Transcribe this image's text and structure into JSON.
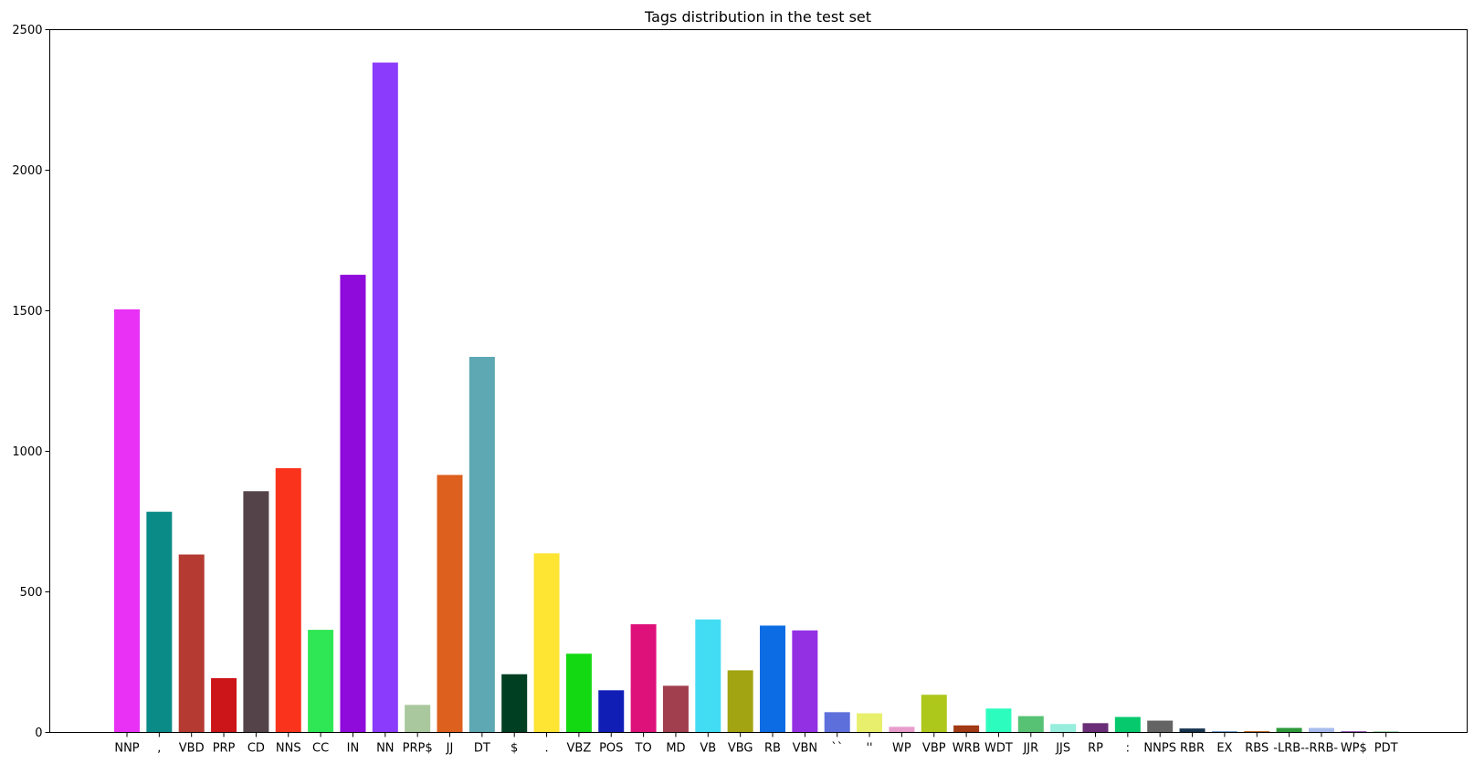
{
  "chart_data": {
    "type": "bar",
    "title": "Tags distribution in the test set",
    "xlabel": "",
    "ylabel": "",
    "ylim": [
      0,
      2500
    ],
    "yticks": [
      "0",
      "500",
      "1000",
      "1500",
      "2000",
      "2500"
    ],
    "grid": false,
    "categories": [
      "NNP",
      ",",
      "VBD",
      "PRP",
      "CD",
      "NNS",
      "CC",
      "IN",
      "NN",
      "PRP$",
      "JJ",
      "DT",
      "$",
      ".",
      "VBZ",
      "POS",
      "TO",
      "MD",
      "VB",
      "VBG",
      "RB",
      "VBN",
      "``",
      "''",
      "WP",
      "VBP",
      "WRB",
      "WDT",
      "JJR",
      "JJS",
      "RP",
      ":",
      "NNPS",
      "RBR",
      "EX",
      "RBS",
      "-LRB-",
      "-RRB-",
      "WP$",
      "PDT"
    ],
    "values": [
      1505,
      785,
      633,
      193,
      858,
      940,
      365,
      1628,
      2383,
      98,
      916,
      1336,
      207,
      637,
      280,
      150,
      385,
      166,
      402,
      221,
      380,
      363,
      72,
      68,
      20,
      134,
      25,
      85,
      58,
      30,
      33,
      55,
      42,
      14,
      4,
      5,
      16,
      16,
      4,
      3
    ],
    "colors": [
      "#e831f5",
      "#0b8b87",
      "#b53a31",
      "#cc1519",
      "#54444a",
      "#fa331d",
      "#2fe754",
      "#8f0bdb",
      "#8b3bfc",
      "#aac89e",
      "#dd601e",
      "#5da8b3",
      "#013f22",
      "#fee433",
      "#13d912",
      "#111eb6",
      "#de117b",
      "#a23f4f",
      "#42ddf3",
      "#a3a411",
      "#0c6ce3",
      "#9330e4",
      "#5d6fdb",
      "#e8ef6c",
      "#e89ccc",
      "#aec71b",
      "#a23a15",
      "#2dfcbf",
      "#57c274",
      "#97eedd",
      "#692e77",
      "#05c96c",
      "#636463",
      "#15324e",
      "#4586c3",
      "#bd7330",
      "#2d9a3a",
      "#a8bdee",
      "#7c2ba6",
      "#41a858"
    ]
  }
}
